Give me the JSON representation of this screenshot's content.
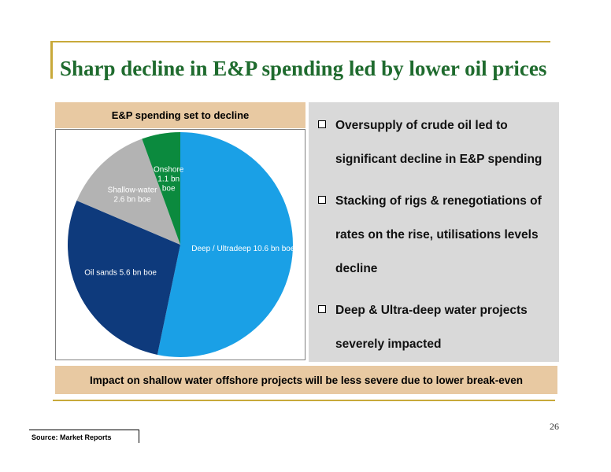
{
  "slide": {
    "title": "Sharp decline in E&P spending led by lower oil prices",
    "chart_header": "E&P spending set to decline",
    "bullets": [
      "Oversupply of crude oil led to significant decline in E&P spending",
      "Stacking of rigs & renegotiations of rates on the rise, utilisations levels decline",
      "Deep & Ultra-deep water projects severely impacted"
    ],
    "banner": "Impact on shallow water offshore projects will be less severe due to lower break-even",
    "page_number": "26",
    "source": "Source: Market Reports"
  },
  "colors": {
    "title": "#1f6b2e",
    "gold": "#c8a93a",
    "tan": "#e8c9a2",
    "panel": "#d9d9d9"
  },
  "chart_data": {
    "type": "pie",
    "unit": "bn boe",
    "slices": [
      {
        "label_lines": [
          "Deep / Ultradeep 10.6 bn boe"
        ],
        "value": 10.6,
        "color": "#1aa0e6"
      },
      {
        "label_lines": [
          "Oil sands 5.6 bn boe"
        ],
        "value": 5.6,
        "color": "#0e3a7c"
      },
      {
        "label_lines": [
          "Shallow-water",
          "2.6 bn boe"
        ],
        "value": 2.6,
        "color": "#b3b3b3"
      },
      {
        "label_lines": [
          "Onshore",
          "1.1 bn",
          "boe"
        ],
        "value": 1.1,
        "color": "#0b8a3e"
      }
    ],
    "start": "12 o'clock",
    "direction": "clockwise"
  }
}
